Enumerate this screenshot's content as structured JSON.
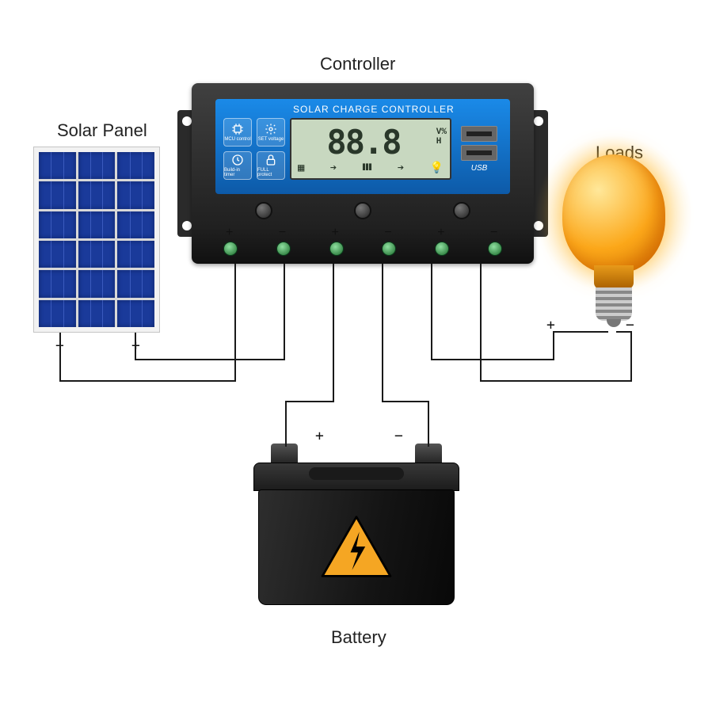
{
  "labels": {
    "controller": "Controller",
    "solar_panel": "Solar Panel",
    "loads": "Loads",
    "battery": "Battery"
  },
  "controller": {
    "title": "SOLAR CHARGE CONTROLLER",
    "lcd_value": "88.8",
    "lcd_unit_top": "V%",
    "lcd_unit_bottom": "H",
    "usb_label": "USB",
    "features": {
      "mcu": "MCU control",
      "set": "SET voltage",
      "timer": "Build-in timer",
      "protect": "FULL protect"
    },
    "terminal_signs": [
      "+",
      "−",
      "+",
      "−",
      "+",
      "−"
    ],
    "buttons_count": 3,
    "terminals_count": 6,
    "face_color": "#1a8ae8",
    "body_color": "#2a2a2a"
  },
  "solar": {
    "cols": 3,
    "rows": 6,
    "cell_color": "#1a3a9a",
    "frame_color": "#f2f2f2",
    "pos_sign": "+",
    "neg_sign": "−"
  },
  "bulb": {
    "glass_color": "#fca81a",
    "glow_color": "#ffc83c",
    "pos_sign": "+",
    "neg_sign": "−"
  },
  "battery": {
    "body_color": "#1c1c1c",
    "warning_fill": "#f5a623",
    "warning_stroke": "#000000",
    "pos_sign": "+",
    "neg_sign": "−"
  },
  "wire_color": "#1a1a1a",
  "background": "#ffffff"
}
